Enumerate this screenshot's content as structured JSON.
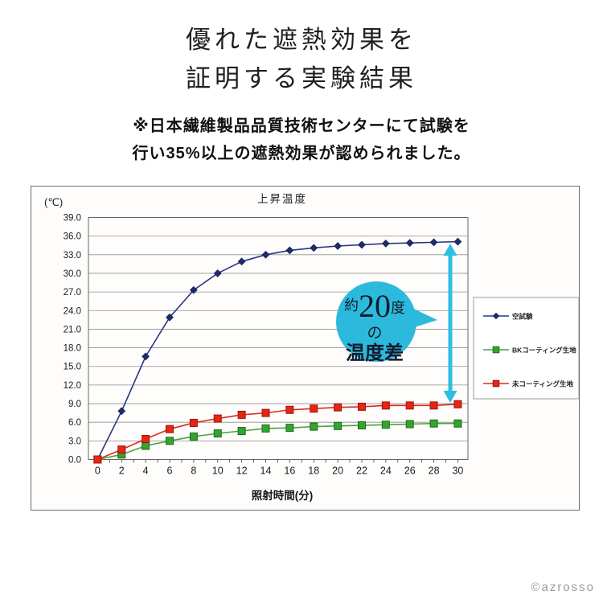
{
  "page": {
    "title_line1": "優れた遮熱効果を",
    "title_line2": "証明する実験結果",
    "subtitle_line1": "※日本繊維製品品質技術センターにて試験を",
    "subtitle_line2": "行い35%以上の遮熱効果が認められました。",
    "copyright": "©azrosso"
  },
  "chart_data": {
    "type": "line",
    "title": "上昇温度",
    "y_unit": "(℃)",
    "xlabel": "照射時間(分)",
    "x": [
      0,
      2,
      4,
      6,
      8,
      10,
      12,
      14,
      16,
      18,
      20,
      22,
      24,
      26,
      28,
      30
    ],
    "ylim": [
      0,
      39
    ],
    "ytick_step": 3,
    "grid": true,
    "legend_position": "right",
    "series": [
      {
        "name": "空試験",
        "marker": "diamond",
        "line_color": "#2a3680",
        "fill_color": "#1f2d6e",
        "edge_color": "#141d4d",
        "values": [
          0.0,
          7.8,
          16.6,
          22.9,
          27.3,
          30.0,
          31.9,
          33.0,
          33.7,
          34.1,
          34.4,
          34.6,
          34.8,
          34.9,
          35.0,
          35.1
        ]
      },
      {
        "name": "BKコーティング生地",
        "marker": "square",
        "line_color": "#4aa244",
        "fill_color": "#33a52f",
        "edge_color": "#1b6b1b",
        "values": [
          0.0,
          0.8,
          2.2,
          3.0,
          3.7,
          4.2,
          4.6,
          5.0,
          5.1,
          5.3,
          5.4,
          5.5,
          5.6,
          5.7,
          5.8,
          5.8
        ]
      },
      {
        "name": "未コーティング生地",
        "marker": "square",
        "line_color": "#dd2a1b",
        "fill_color": "#e42617",
        "edge_color": "#9d1408",
        "values": [
          0.0,
          1.6,
          3.3,
          4.9,
          5.9,
          6.6,
          7.2,
          7.5,
          8.0,
          8.2,
          8.4,
          8.5,
          8.7,
          8.7,
          8.7,
          8.9
        ]
      }
    ],
    "annotation": {
      "prefix": "約",
      "value": "20",
      "suffix": "度",
      "middle": "の",
      "label": "温度差",
      "bubble_color": "#2cbadc",
      "arrow_color": "#2cbfe2",
      "text_color": "#131b2e"
    }
  }
}
